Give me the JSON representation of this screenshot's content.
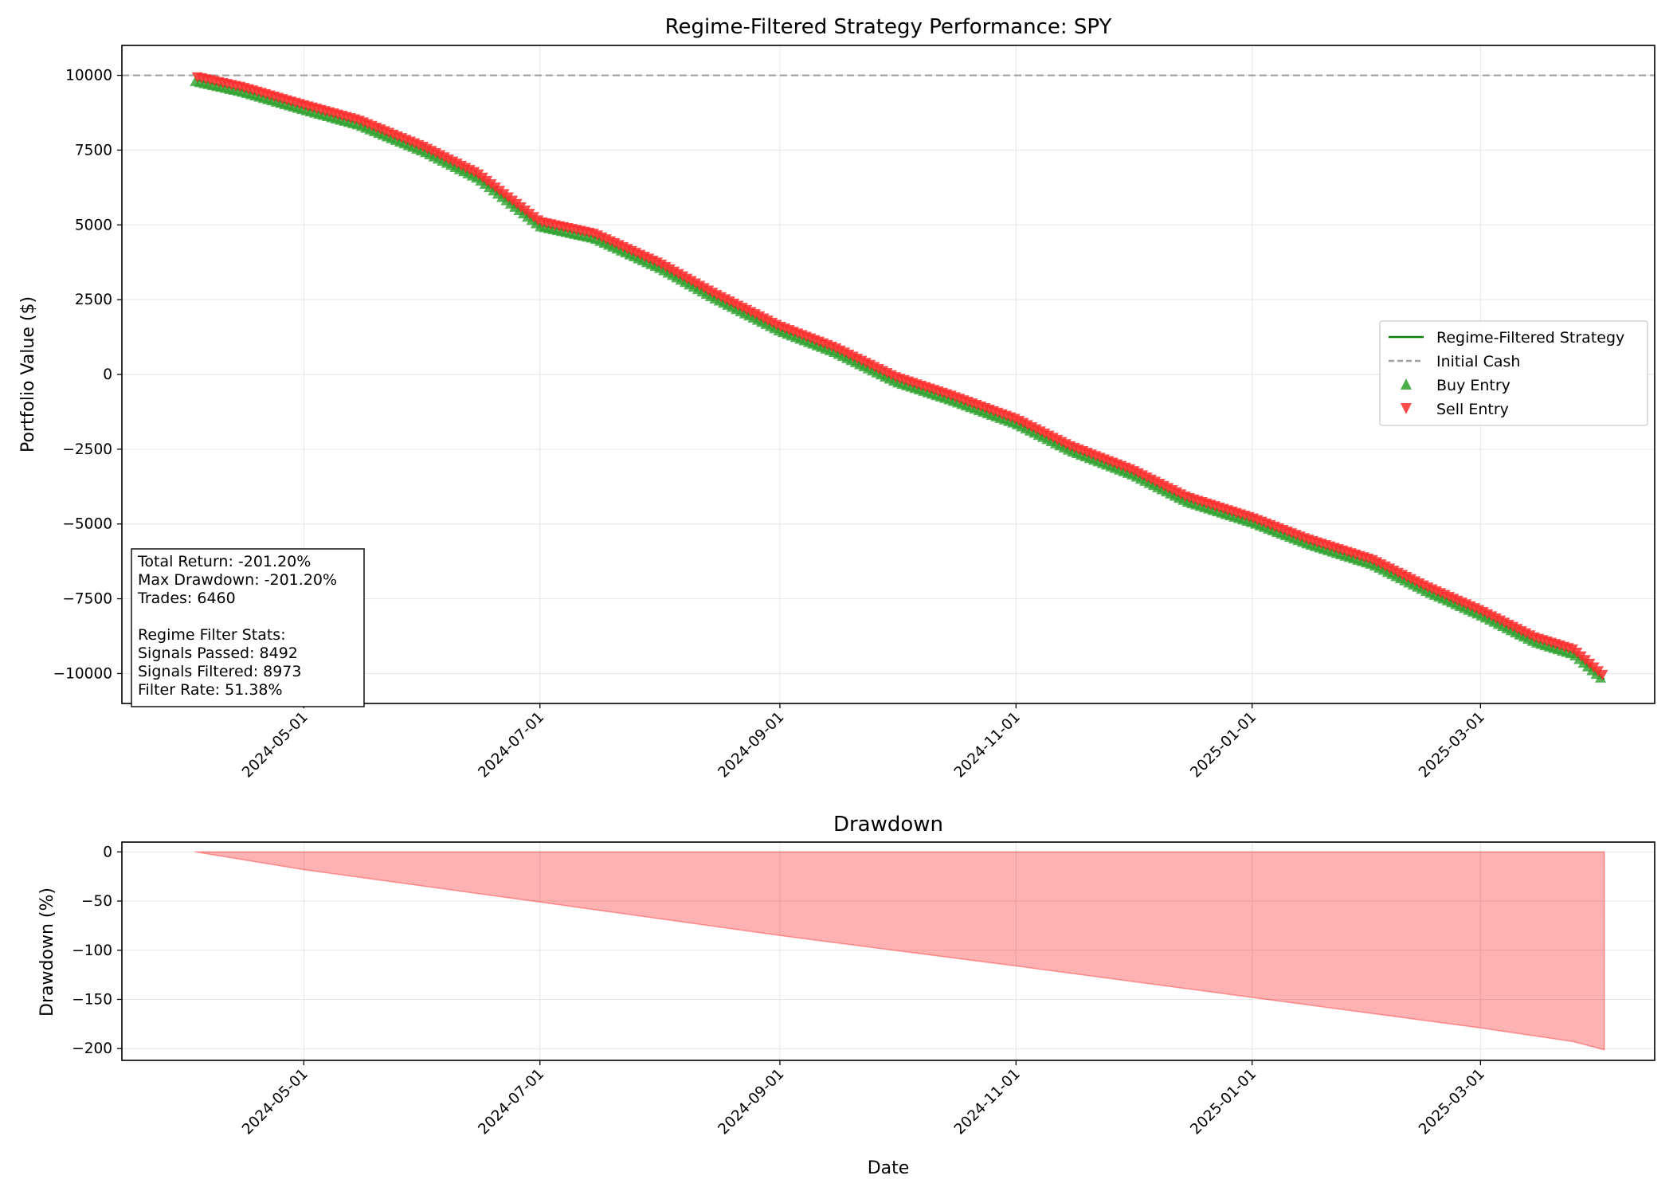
{
  "chart_data": [
    {
      "type": "line",
      "title": "Regime-Filtered Strategy Performance: SPY",
      "xlabel": "",
      "ylabel": "Portfolio Value ($)",
      "x_range": [
        "2024-03-15",
        "2025-04-15"
      ],
      "ylim": [
        -11000,
        11000
      ],
      "grid": true,
      "yticks": [
        10000,
        7500,
        5000,
        2500,
        0,
        -2500,
        -5000,
        -7500,
        -10000
      ],
      "ytick_labels": [
        "10000",
        "7500",
        "5000",
        "2500",
        "0",
        "−2500",
        "−5000",
        "−7500",
        "−10000"
      ],
      "xticks": [
        "2024-05-01",
        "2024-07-01",
        "2024-09-01",
        "2024-11-01",
        "2025-01-01",
        "2025-03-01"
      ],
      "legend_position": "center-right",
      "series": [
        {
          "name": "Regime-Filtered Strategy",
          "style": "solid line",
          "color": "#008000",
          "points": [
            {
              "x": "2024-04-03",
              "y": 9850
            },
            {
              "x": "2024-04-15",
              "y": 9500
            },
            {
              "x": "2024-05-01",
              "y": 8900
            },
            {
              "x": "2024-05-15",
              "y": 8400
            },
            {
              "x": "2024-06-01",
              "y": 7500
            },
            {
              "x": "2024-06-15",
              "y": 6600
            },
            {
              "x": "2024-07-01",
              "y": 5000
            },
            {
              "x": "2024-07-15",
              "y": 4600
            },
            {
              "x": "2024-08-01",
              "y": 3600
            },
            {
              "x": "2024-08-15",
              "y": 2600
            },
            {
              "x": "2024-09-01",
              "y": 1500
            },
            {
              "x": "2024-09-15",
              "y": 800
            },
            {
              "x": "2024-10-01",
              "y": -200
            },
            {
              "x": "2024-10-15",
              "y": -800
            },
            {
              "x": "2024-11-01",
              "y": -1600
            },
            {
              "x": "2024-11-15",
              "y": -2500
            },
            {
              "x": "2024-12-01",
              "y": -3300
            },
            {
              "x": "2024-12-15",
              "y": -4200
            },
            {
              "x": "2025-01-01",
              "y": -4900
            },
            {
              "x": "2025-01-15",
              "y": -5600
            },
            {
              "x": "2025-02-01",
              "y": -6300
            },
            {
              "x": "2025-02-15",
              "y": -7200
            },
            {
              "x": "2025-03-01",
              "y": -8000
            },
            {
              "x": "2025-03-15",
              "y": -8900
            },
            {
              "x": "2025-03-25",
              "y": -9300
            },
            {
              "x": "2025-04-02",
              "y": -10200
            }
          ]
        },
        {
          "name": "Initial Cash",
          "style": "dashed line",
          "color": "#a0a0a0",
          "points": [
            {
              "x": "2024-03-15",
              "y": 10000
            },
            {
              "x": "2025-04-15",
              "y": 10000
            }
          ]
        },
        {
          "name": "Buy Entry",
          "style": "triangle-up markers",
          "color": "#2ca02c",
          "note_count": "dense, along strategy line"
        },
        {
          "name": "Sell Entry",
          "style": "triangle-down markers",
          "color": "#ff2d2d",
          "note_count": "dense, along strategy line"
        }
      ],
      "stats_box": [
        "Total Return: -201.20%",
        "Max Drawdown: -201.20%",
        "Trades: 6460",
        "",
        "Regime Filter Stats:",
        "Signals Passed: 8492",
        "Signals Filtered: 8973",
        "Filter Rate: 51.38%"
      ]
    },
    {
      "type": "area",
      "title": "Drawdown",
      "xlabel": "Date",
      "ylabel": "Drawdown (%)",
      "x_range": [
        "2024-03-15",
        "2025-04-15"
      ],
      "ylim": [
        -212,
        10
      ],
      "grid": true,
      "yticks": [
        0,
        -50,
        -100,
        -150,
        -200
      ],
      "ytick_labels": [
        "0",
        "−50",
        "−100",
        "−150",
        "−200"
      ],
      "xticks": [
        "2024-05-01",
        "2024-07-01",
        "2024-09-01",
        "2024-11-01",
        "2025-01-01",
        "2025-03-01"
      ],
      "series": [
        {
          "name": "",
          "color": "#ff0000",
          "fill_opacity": 0.3,
          "points": [
            {
              "x": "2024-04-03",
              "y": 0
            },
            {
              "x": "2024-05-01",
              "y": -18
            },
            {
              "x": "2024-07-01",
              "y": -51
            },
            {
              "x": "2024-09-01",
              "y": -85
            },
            {
              "x": "2024-11-01",
              "y": -116
            },
            {
              "x": "2025-01-01",
              "y": -148
            },
            {
              "x": "2025-03-01",
              "y": -179
            },
            {
              "x": "2025-03-25",
              "y": -193
            },
            {
              "x": "2025-04-02",
              "y": -201.2
            }
          ]
        }
      ]
    }
  ],
  "colors": {
    "strategy_line": "#008000",
    "buy_marker": "#2ca02c",
    "sell_marker": "#ff2d2d",
    "initial_cash": "#a0a0a0",
    "drawdown_fill": "#ffb0b0",
    "grid": "#e6e6e6"
  }
}
